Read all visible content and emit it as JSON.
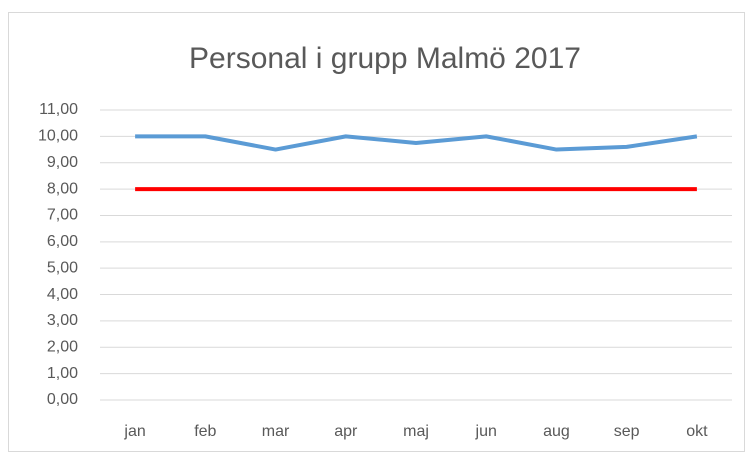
{
  "chart_data": {
    "type": "line",
    "title": "Personal i grupp Malmö 2017",
    "categories": [
      "jan",
      "feb",
      "mar",
      "apr",
      "maj",
      "jun",
      "aug",
      "sep",
      "okt"
    ],
    "series": [
      {
        "color": "#5b9bd5",
        "values": [
          10,
          10,
          9.5,
          10,
          9.75,
          10,
          9.5,
          9.6,
          10
        ]
      },
      {
        "color": "#ff0000",
        "values": [
          8,
          8,
          8,
          8,
          8,
          8,
          8,
          8,
          8
        ]
      }
    ],
    "ylim": [
      0,
      11
    ],
    "yticks": [
      {
        "value": 0,
        "label": "0,00"
      },
      {
        "value": 1,
        "label": "1,00"
      },
      {
        "value": 2,
        "label": "2,00"
      },
      {
        "value": 3,
        "label": "3,00"
      },
      {
        "value": 4,
        "label": "4,00"
      },
      {
        "value": 5,
        "label": "5,00"
      },
      {
        "value": 6,
        "label": "6,00"
      },
      {
        "value": 7,
        "label": "7,00"
      },
      {
        "value": 8,
        "label": "8,00"
      },
      {
        "value": 9,
        "label": "9,00"
      },
      {
        "value": 10,
        "label": "10,00"
      },
      {
        "value": 11,
        "label": "11,00"
      }
    ],
    "grid": true
  }
}
